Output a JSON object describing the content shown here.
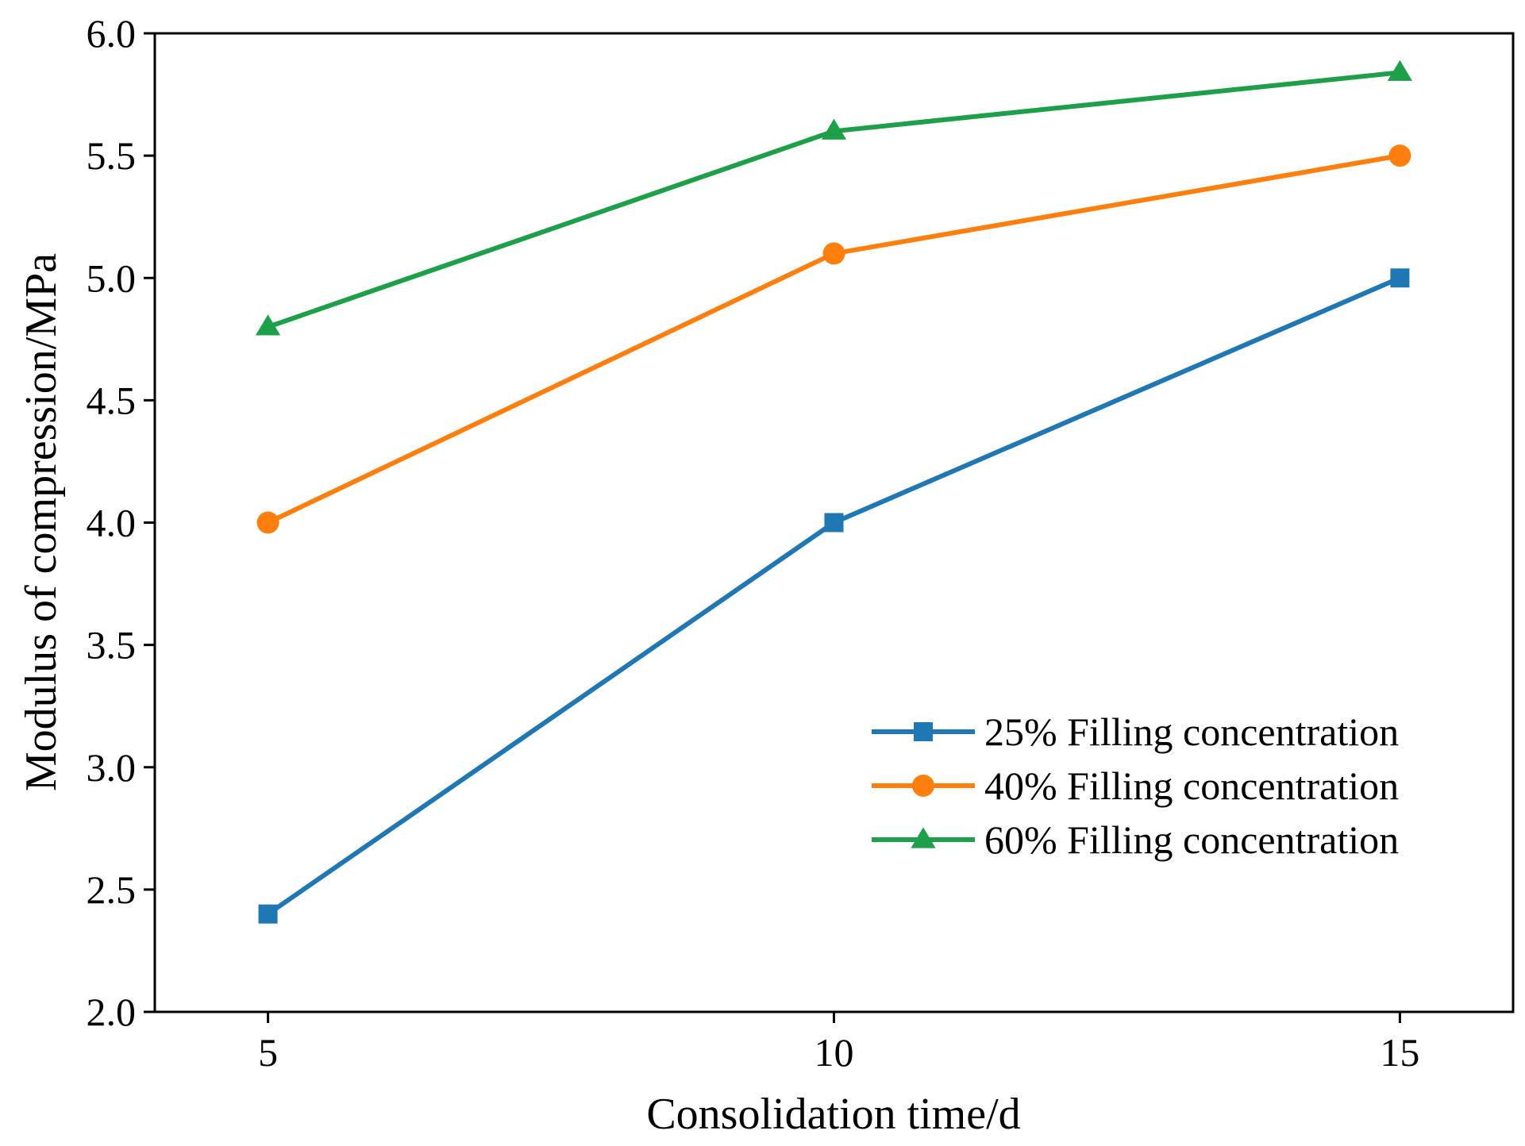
{
  "chart_data": {
    "type": "line",
    "title": "",
    "xlabel": "Consolidation time/d",
    "ylabel": "Modulus of compression/MPa",
    "x": [
      5,
      10,
      15
    ],
    "xlim": [
      4,
      16
    ],
    "ylim": [
      2.0,
      6.0
    ],
    "xticks": [
      "5",
      "10",
      "15"
    ],
    "yticks": [
      "2.0",
      "2.5",
      "3.0",
      "3.5",
      "4.0",
      "4.5",
      "5.0",
      "5.5",
      "6.0"
    ],
    "grid": false,
    "legend_position": "bottom-right",
    "series": [
      {
        "name": "25% Filling concentration",
        "marker": "square",
        "color": "#1f77b4",
        "values": [
          2.4,
          4.0,
          5.0
        ]
      },
      {
        "name": "40% Filling concentration",
        "marker": "circle",
        "color": "#ff7f0e",
        "values": [
          4.0,
          5.1,
          5.5
        ]
      },
      {
        "name": "60% Filling concentration",
        "marker": "triangle",
        "color": "#1ea04b",
        "values": [
          4.8,
          5.6,
          5.84
        ]
      }
    ]
  }
}
